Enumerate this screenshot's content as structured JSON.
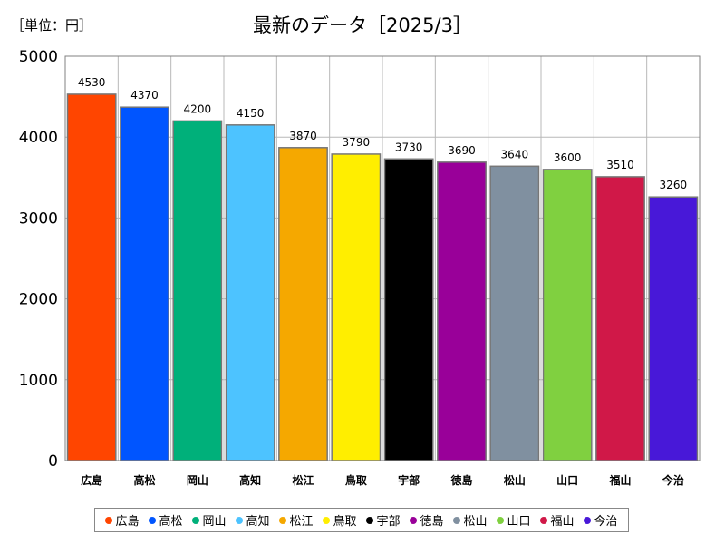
{
  "unit_label": "［単位：円］",
  "chart_data": {
    "type": "bar",
    "title": "最新のデータ［2025/3］",
    "categories": [
      "広島",
      "高松",
      "岡山",
      "高知",
      "松江",
      "鳥取",
      "宇部",
      "徳島",
      "松山",
      "山口",
      "福山",
      "今治"
    ],
    "values": [
      4530,
      4370,
      4200,
      4150,
      3870,
      3790,
      3730,
      3690,
      3640,
      3600,
      3510,
      3260
    ],
    "colors": [
      "#ff4500",
      "#0055ff",
      "#00b07a",
      "#4dc3ff",
      "#f5a800",
      "#ffee00",
      "#000000",
      "#990099",
      "#8090a0",
      "#80d040",
      "#d01848",
      "#4818d8"
    ],
    "ylim": [
      0,
      5000
    ],
    "yticks": [
      0,
      1000,
      2000,
      3000,
      4000,
      5000
    ],
    "grid": true,
    "legend_position": "bottom"
  }
}
